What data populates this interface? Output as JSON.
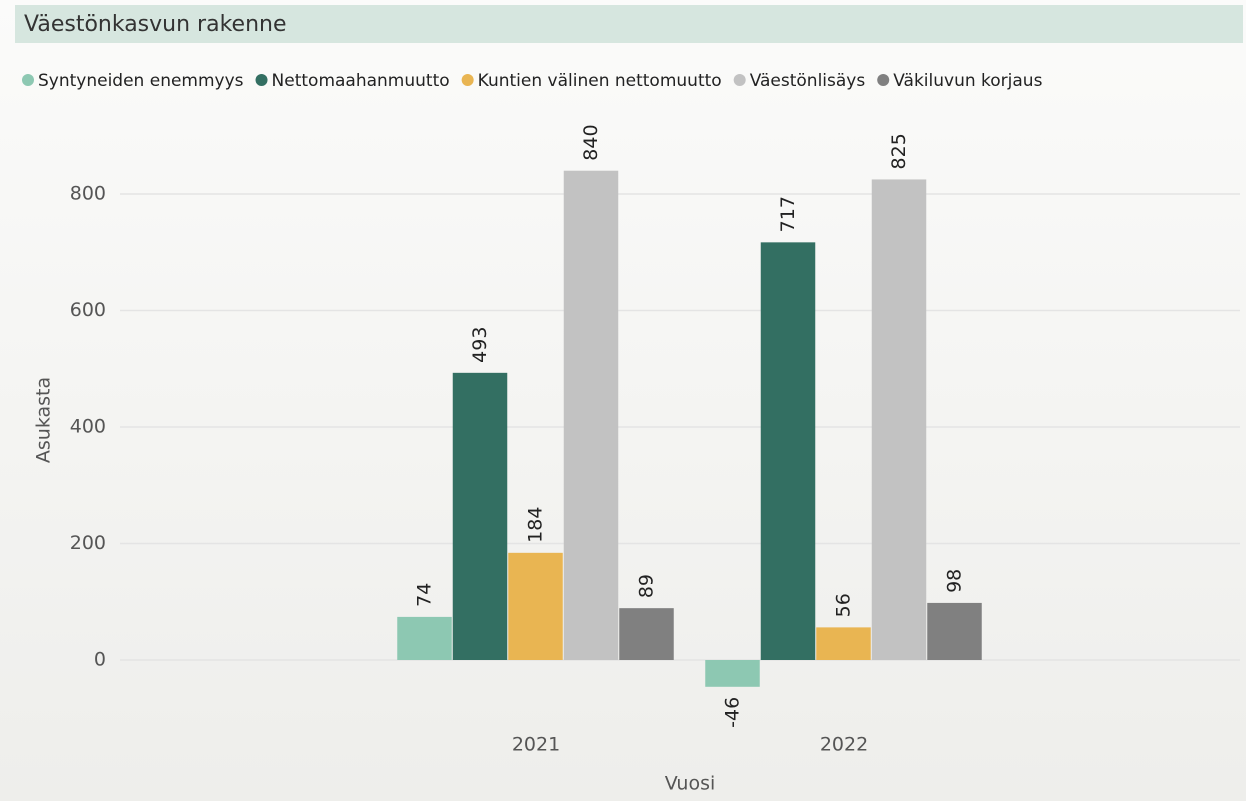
{
  "chart_data": {
    "type": "bar",
    "title": "Väestönkasvun rakenne",
    "x_label": "Vuosi",
    "y_label": "Asukasta",
    "categories": [
      "2021",
      "2022"
    ],
    "series": [
      {
        "name": "Syntyneiden enemmyys",
        "color": "#8dc8b2",
        "values": [
          74,
          -46
        ]
      },
      {
        "name": "Nettomaahanmuutto",
        "color": "#336f62",
        "values": [
          493,
          717
        ]
      },
      {
        "name": "Kuntien välinen nettomuutto",
        "color": "#e9b552",
        "values": [
          184,
          56
        ]
      },
      {
        "name": "Väestönlisäys",
        "color": "#c2c2c2",
        "values": [
          840,
          825
        ]
      },
      {
        "name": "Väkiluvun korjaus",
        "color": "#808080",
        "values": [
          89,
          98
        ]
      }
    ],
    "ylim": [
      -100,
      900
    ],
    "yticks": [
      0,
      200,
      400,
      600,
      800
    ],
    "grid": true,
    "legend": "top"
  }
}
